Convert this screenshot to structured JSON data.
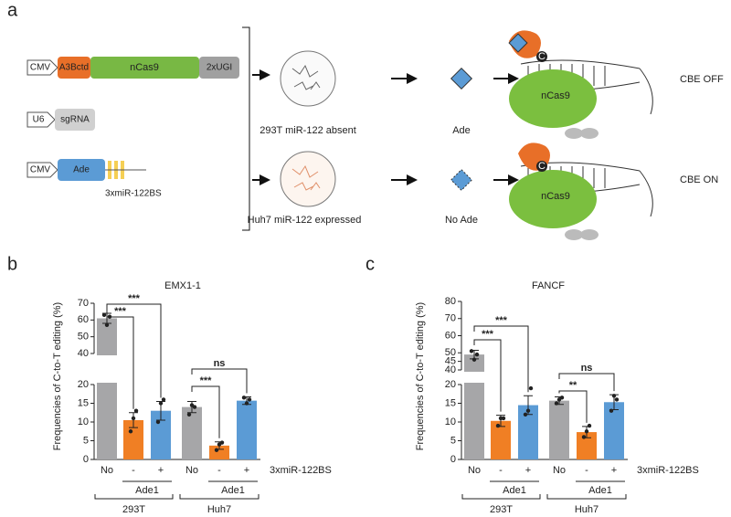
{
  "panel_labels": {
    "a": "a",
    "b": "b",
    "c": "c"
  },
  "diagram": {
    "constructs": [
      {
        "promoter": "CMV",
        "parts": [
          "A3Bctd",
          "nCas9",
          "2xUGI"
        ]
      },
      {
        "promoter": "U6",
        "parts": [
          "sgRNA"
        ]
      },
      {
        "promoter": "CMV",
        "parts": [
          "Ade"
        ],
        "site": "3xmiR-122BS"
      }
    ],
    "cells": [
      "293T miR-122 absent",
      "Huh7 miR-122 expressed"
    ],
    "states": [
      "Ade",
      "No Ade"
    ],
    "complex": [
      {
        "protein": "nCas9",
        "base": "C",
        "outcome": "CBE OFF"
      },
      {
        "protein": "nCas9",
        "base": "C",
        "outcome": "CBE ON"
      }
    ]
  },
  "chart_data": [
    {
      "type": "bar",
      "title": "EMX1-1",
      "ylabel": "Frequencies of C-to-T editing (%)",
      "xlabel": "3xmiR-122BS",
      "categories": [
        "No",
        "-",
        "+",
        "No",
        "-",
        "+"
      ],
      "colors": [
        "#a6a6a8",
        "#f07f24",
        "#5b9bd5",
        "#a6a6a8",
        "#f07f24",
        "#5b9bd5"
      ],
      "values": [
        61,
        10.5,
        13,
        14,
        3.7,
        15.7
      ],
      "errors": [
        3,
        2,
        2.5,
        1.5,
        1,
        1
      ],
      "points": [
        [
          63,
          57,
          62
        ],
        [
          7.5,
          11,
          13
        ],
        [
          10,
          15,
          16
        ],
        [
          12,
          14.5,
          14
        ],
        [
          2.5,
          4,
          4.5
        ],
        [
          16.5,
          15,
          16
        ]
      ],
      "ylim": [
        0,
        70
      ],
      "ybreak": [
        20,
        40
      ],
      "yticks": [
        0,
        5,
        10,
        15,
        20,
        40,
        50,
        60,
        70
      ],
      "treatment_groups": [
        {
          "label": "Ade1",
          "span": [
            1,
            2
          ]
        },
        {
          "label": "Ade1",
          "span": [
            4,
            5
          ]
        }
      ],
      "cell_lines": [
        {
          "label": "293T",
          "span": [
            0,
            2
          ]
        },
        {
          "label": "Huh7",
          "span": [
            3,
            5
          ]
        }
      ],
      "comparisons": [
        {
          "pair": [
            0,
            1
          ],
          "label": "***"
        },
        {
          "pair": [
            0,
            2
          ],
          "label": "***"
        },
        {
          "pair": [
            3,
            4
          ],
          "label": "***"
        },
        {
          "pair": [
            3,
            5
          ],
          "label": "ns"
        }
      ]
    },
    {
      "type": "bar",
      "title": "FANCF",
      "ylabel": "Frequencies of C-to-T editing (%)",
      "xlabel": "3xmiR-122BS",
      "categories": [
        "No",
        "-",
        "+",
        "No",
        "-",
        "+"
      ],
      "colors": [
        "#a6a6a8",
        "#f07f24",
        "#5b9bd5",
        "#a6a6a8",
        "#f07f24",
        "#5b9bd5"
      ],
      "values": [
        49,
        10.3,
        14.5,
        15.7,
        7.3,
        15.3
      ],
      "errors": [
        2.5,
        1.5,
        2.5,
        1,
        1.5,
        2
      ],
      "points": [
        [
          51,
          46,
          49
        ],
        [
          9,
          11,
          11
        ],
        [
          12,
          13,
          19
        ],
        [
          15,
          16,
          16.5
        ],
        [
          6,
          7.5,
          9
        ],
        [
          13,
          17,
          16
        ]
      ],
      "ylim": [
        0,
        80
      ],
      "ybreak": [
        20,
        40
      ],
      "yticks": [
        0,
        5,
        10,
        15,
        20,
        40,
        45,
        50,
        60,
        70,
        80
      ],
      "treatment_groups": [
        {
          "label": "Ade1",
          "span": [
            1,
            2
          ]
        },
        {
          "label": "Ade1",
          "span": [
            4,
            5
          ]
        }
      ],
      "cell_lines": [
        {
          "label": "293T",
          "span": [
            0,
            2
          ]
        },
        {
          "label": "Huh7",
          "span": [
            3,
            5
          ]
        }
      ],
      "comparisons": [
        {
          "pair": [
            0,
            1
          ],
          "label": "***"
        },
        {
          "pair": [
            0,
            2
          ],
          "label": "***"
        },
        {
          "pair": [
            3,
            4
          ],
          "label": "**"
        },
        {
          "pair": [
            3,
            5
          ],
          "label": "ns"
        }
      ]
    }
  ]
}
